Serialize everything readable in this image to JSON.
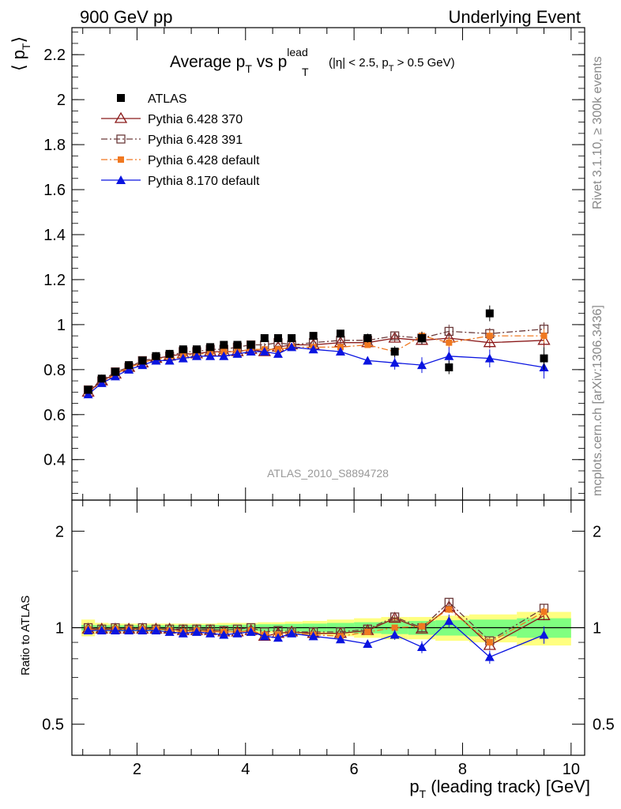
{
  "header": {
    "left": "900 GeV pp",
    "right": "Underlying Event"
  },
  "side_labels": {
    "rivet": "Rivet 3.1.10, ≥ 300k events",
    "mcplots": "mcplots.cern.ch [arXiv:1306.3436]"
  },
  "chart_data": [
    {
      "type": "scatter",
      "panel": "main",
      "title_main": "Average p",
      "title_sub1": "T",
      "title_vs": " vs p",
      "title_sup": "lead",
      "title_sub2": "T",
      "title_cut_a": "(|η| < 2.5, p",
      "title_cut_sub": "T",
      "title_cut_b": " > 0.5 GeV)",
      "ylabel_a": "⟨ p",
      "ylabel_sub": "T",
      "ylabel_b": "⟩",
      "analysis_label": "ATLAS_2010_S8894728",
      "xlim": [
        0.8,
        10.25
      ],
      "ylim": [
        0.22,
        2.32
      ],
      "yticks": [
        "0.4",
        "0.6",
        "0.8",
        "1",
        "1.2",
        "1.4",
        "1.6",
        "1.8",
        "2",
        "2.2"
      ],
      "legend_position": "top-left",
      "x": [
        1.1,
        1.35,
        1.6,
        1.85,
        2.1,
        2.35,
        2.6,
        2.85,
        3.1,
        3.35,
        3.6,
        3.85,
        4.1,
        4.35,
        4.6,
        4.85,
        5.25,
        5.75,
        6.25,
        6.75,
        7.25,
        7.75,
        8.5,
        9.5
      ],
      "series": [
        {
          "name": "ATLAS",
          "color": "#000000",
          "marker": "square-filled",
          "line": "none",
          "values": [
            0.71,
            0.76,
            0.79,
            0.82,
            0.84,
            0.86,
            0.87,
            0.89,
            0.89,
            0.9,
            0.91,
            0.91,
            0.91,
            0.94,
            0.94,
            0.94,
            0.95,
            0.96,
            0.94,
            0.88,
            0.94,
            0.81,
            1.05,
            0.85
          ],
          "errors": [
            0.005,
            0.005,
            0.005,
            0.005,
            0.005,
            0.005,
            0.006,
            0.006,
            0.007,
            0.008,
            0.008,
            0.009,
            0.01,
            0.011,
            0.012,
            0.013,
            0.014,
            0.017,
            0.02,
            0.024,
            0.028,
            0.03,
            0.035,
            0.05
          ]
        },
        {
          "name": "Pythia 6.428 370",
          "color": "#8b1a1a",
          "marker": "triangle-open",
          "line": "solid",
          "values": [
            0.7,
            0.75,
            0.78,
            0.81,
            0.83,
            0.85,
            0.86,
            0.87,
            0.87,
            0.88,
            0.88,
            0.88,
            0.89,
            0.88,
            0.9,
            0.91,
            0.91,
            0.92,
            0.92,
            0.94,
            0.93,
            0.94,
            0.92,
            0.93
          ],
          "errors": [
            0.004,
            0.004,
            0.004,
            0.004,
            0.004,
            0.005,
            0.005,
            0.005,
            0.006,
            0.006,
            0.006,
            0.007,
            0.007,
            0.008,
            0.008,
            0.009,
            0.01,
            0.012,
            0.014,
            0.016,
            0.02,
            0.024,
            0.025,
            0.03
          ]
        },
        {
          "name": "Pythia 6.428 391",
          "color": "#6b3a3a",
          "marker": "square-open",
          "line": "dashdot",
          "values": [
            0.71,
            0.75,
            0.79,
            0.81,
            0.84,
            0.85,
            0.86,
            0.88,
            0.88,
            0.89,
            0.89,
            0.9,
            0.91,
            0.91,
            0.92,
            0.91,
            0.92,
            0.93,
            0.93,
            0.95,
            0.94,
            0.97,
            0.96,
            0.98
          ],
          "errors": [
            0.004,
            0.004,
            0.004,
            0.004,
            0.004,
            0.005,
            0.005,
            0.005,
            0.006,
            0.006,
            0.006,
            0.007,
            0.007,
            0.008,
            0.008,
            0.009,
            0.01,
            0.012,
            0.014,
            0.016,
            0.02,
            0.03,
            0.025,
            0.03
          ]
        },
        {
          "name": "Pythia 6.428 default",
          "color": "#f07820",
          "marker": "square-filled-small",
          "line": "dashdot",
          "values": [
            0.7,
            0.74,
            0.78,
            0.81,
            0.83,
            0.85,
            0.85,
            0.86,
            0.87,
            0.87,
            0.88,
            0.88,
            0.89,
            0.89,
            0.89,
            0.9,
            0.9,
            0.9,
            0.91,
            0.88,
            0.95,
            0.92,
            0.95,
            0.95
          ],
          "errors": [
            0.004,
            0.004,
            0.004,
            0.004,
            0.004,
            0.005,
            0.005,
            0.005,
            0.006,
            0.006,
            0.006,
            0.007,
            0.007,
            0.008,
            0.008,
            0.009,
            0.01,
            0.012,
            0.014,
            0.016,
            0.02,
            0.024,
            0.025,
            0.03
          ]
        },
        {
          "name": "Pythia 8.170 default",
          "color": "#0a14e0",
          "marker": "triangle-filled",
          "line": "solid",
          "values": [
            0.69,
            0.74,
            0.77,
            0.8,
            0.82,
            0.84,
            0.84,
            0.85,
            0.86,
            0.86,
            0.86,
            0.87,
            0.88,
            0.88,
            0.87,
            0.9,
            0.89,
            0.88,
            0.84,
            0.83,
            0.82,
            0.86,
            0.85,
            0.81
          ],
          "errors": [
            0.004,
            0.004,
            0.004,
            0.004,
            0.004,
            0.005,
            0.005,
            0.005,
            0.006,
            0.006,
            0.006,
            0.007,
            0.007,
            0.008,
            0.008,
            0.009,
            0.012,
            0.014,
            0.016,
            0.03,
            0.035,
            0.04,
            0.04,
            0.05
          ]
        }
      ]
    },
    {
      "type": "scatter",
      "panel": "ratio",
      "ylabel": "Ratio to ATLAS",
      "xlabel_a": "p",
      "xlabel_sub": "T",
      "xlabel_b": " (leading track) [GeV]",
      "xticks": [
        "2",
        "4",
        "6",
        "8",
        "10"
      ],
      "yticks": [
        "0.5",
        "1",
        "2"
      ],
      "yscale": "log",
      "ylim": [
        0.4,
        2.5
      ],
      "bands": {
        "yellow_halfwidth": [
          0.06,
          0.035,
          0.03,
          0.03,
          0.03,
          0.03,
          0.03,
          0.03,
          0.03,
          0.03,
          0.035,
          0.035,
          0.035,
          0.04,
          0.04,
          0.045,
          0.05,
          0.06,
          0.07,
          0.08,
          0.08,
          0.09,
          0.1,
          0.12
        ],
        "green_halfwidth": [
          0.02,
          0.018,
          0.018,
          0.018,
          0.018,
          0.018,
          0.018,
          0.018,
          0.02,
          0.02,
          0.02,
          0.022,
          0.022,
          0.025,
          0.025,
          0.028,
          0.03,
          0.035,
          0.04,
          0.045,
          0.05,
          0.055,
          0.06,
          0.07
        ]
      },
      "ratio_series": [
        {
          "name": "Pythia 6.428 370",
          "values": [
            0.99,
            0.99,
            0.99,
            0.99,
            0.99,
            0.99,
            0.99,
            0.98,
            0.98,
            0.98,
            0.97,
            0.97,
            0.98,
            0.94,
            0.96,
            0.97,
            0.96,
            0.96,
            0.98,
            1.07,
            0.99,
            1.16,
            0.88,
            1.09
          ]
        },
        {
          "name": "Pythia 6.428 391",
          "values": [
            1.0,
            0.99,
            1.0,
            0.99,
            1.0,
            0.99,
            0.99,
            0.99,
            0.99,
            0.99,
            0.98,
            0.99,
            1.0,
            0.97,
            0.98,
            0.97,
            0.97,
            0.97,
            0.99,
            1.08,
            1.0,
            1.2,
            0.91,
            1.15
          ]
        },
        {
          "name": "Pythia 6.428 default",
          "values": [
            0.99,
            0.98,
            0.99,
            0.99,
            0.99,
            0.99,
            0.98,
            0.97,
            0.98,
            0.97,
            0.97,
            0.97,
            0.98,
            0.95,
            0.95,
            0.96,
            0.95,
            0.94,
            0.97,
            1.0,
            1.01,
            1.14,
            0.9,
            1.12
          ]
        },
        {
          "name": "Pythia 8.170 default",
          "values": [
            0.98,
            0.98,
            0.98,
            0.98,
            0.98,
            0.98,
            0.97,
            0.96,
            0.97,
            0.96,
            0.95,
            0.96,
            0.97,
            0.94,
            0.93,
            0.96,
            0.94,
            0.92,
            0.89,
            0.95,
            0.87,
            1.05,
            0.81,
            0.95
          ]
        }
      ]
    }
  ]
}
